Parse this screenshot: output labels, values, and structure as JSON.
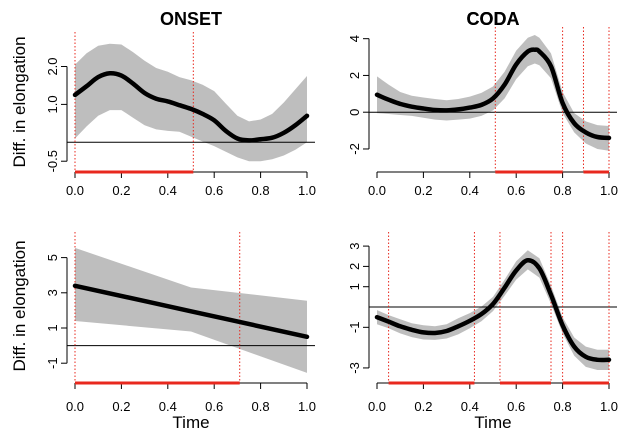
{
  "figure": {
    "ylabel": "Diff. in elongation",
    "xlabel": "Time"
  },
  "chart_data": [
    {
      "type": "line",
      "title": "ONSET",
      "xlabel": "",
      "ylabel": "Diff. in elongation",
      "xlim": [
        0,
        1
      ],
      "ylim": [
        -0.6,
        2.7
      ],
      "xticks": [
        0,
        0.2,
        0.4,
        0.6,
        0.8,
        1.0
      ],
      "xtick_labels": [
        "0.0",
        "0.2",
        "0.4",
        "0.6",
        "0.8",
        "1.0"
      ],
      "yticks": [
        -0.5,
        1.0,
        2.0
      ],
      "ytick_labels": [
        "-0.5",
        "1.0",
        "2.0"
      ],
      "series": [
        {
          "x": [
            0,
            0.05,
            0.1,
            0.15,
            0.2,
            0.25,
            0.3,
            0.35,
            0.4,
            0.45,
            0.5,
            0.55,
            0.6,
            0.65,
            0.7,
            0.75,
            0.8,
            0.85,
            0.9,
            0.95,
            1.0
          ],
          "y": [
            1.25,
            1.48,
            1.72,
            1.82,
            1.76,
            1.55,
            1.3,
            1.15,
            1.08,
            0.98,
            0.88,
            0.75,
            0.58,
            0.3,
            0.1,
            0.05,
            0.08,
            0.12,
            0.25,
            0.45,
            0.7
          ],
          "lower": [
            0.1,
            0.42,
            0.7,
            0.85,
            0.85,
            0.65,
            0.45,
            0.34,
            0.3,
            0.28,
            0.15,
            0.02,
            -0.1,
            -0.25,
            -0.4,
            -0.5,
            -0.5,
            -0.45,
            -0.35,
            -0.2,
            0.0
          ],
          "upper": [
            2.05,
            2.35,
            2.55,
            2.6,
            2.58,
            2.38,
            2.15,
            1.96,
            1.86,
            1.72,
            1.64,
            1.52,
            1.35,
            1.02,
            0.7,
            0.55,
            0.6,
            0.75,
            1.05,
            1.4,
            1.75
          ]
        }
      ],
      "hline": 0,
      "vlines": [
        0.0,
        0.51
      ],
      "significant": [
        [
          0.0,
          0.51
        ]
      ]
    },
    {
      "type": "line",
      "title": "CODA",
      "xlabel": "",
      "ylabel": "",
      "xlim": [
        0,
        1
      ],
      "ylim": [
        -2.6,
        4.2
      ],
      "xticks": [
        0,
        0.2,
        0.4,
        0.6,
        0.8,
        1.0
      ],
      "xtick_labels": [
        "0.0",
        "0.2",
        "0.4",
        "0.6",
        "0.8",
        "1.0"
      ],
      "yticks": [
        -2,
        0,
        2,
        4
      ],
      "ytick_labels": [
        "-2",
        "0",
        "2",
        "4"
      ],
      "series": [
        {
          "x": [
            0,
            0.05,
            0.1,
            0.15,
            0.2,
            0.25,
            0.3,
            0.35,
            0.4,
            0.45,
            0.5,
            0.55,
            0.6,
            0.65,
            0.68,
            0.7,
            0.75,
            0.8,
            0.85,
            0.9,
            0.95,
            1.0
          ],
          "y": [
            0.95,
            0.68,
            0.45,
            0.3,
            0.2,
            0.12,
            0.1,
            0.15,
            0.25,
            0.4,
            0.75,
            1.5,
            2.6,
            3.3,
            3.4,
            3.3,
            2.5,
            0.5,
            -0.6,
            -1.1,
            -1.35,
            -1.4
          ],
          "lower": [
            -0.05,
            -0.1,
            -0.15,
            -0.2,
            -0.3,
            -0.4,
            -0.45,
            -0.4,
            -0.35,
            -0.2,
            0.1,
            0.75,
            1.8,
            2.5,
            2.65,
            2.55,
            1.85,
            -0.05,
            -1.1,
            -1.7,
            -2.0,
            -2.1
          ],
          "upper": [
            1.95,
            1.5,
            1.1,
            0.9,
            0.8,
            0.72,
            0.65,
            0.72,
            0.85,
            1.05,
            1.4,
            2.2,
            3.35,
            4.05,
            4.2,
            4.05,
            3.2,
            1.1,
            -0.05,
            -0.5,
            -0.7,
            -0.75
          ]
        }
      ],
      "hline": 0,
      "vlines": [
        0.51,
        0.8,
        0.89,
        1.0
      ],
      "significant": [
        [
          0.51,
          0.8
        ],
        [
          0.89,
          1.0
        ]
      ]
    },
    {
      "type": "line",
      "title": "",
      "xlabel": "Time",
      "ylabel": "Diff. in elongation",
      "xlim": [
        0,
        1
      ],
      "ylim": [
        -1.5,
        6.0
      ],
      "xticks": [
        0,
        0.2,
        0.4,
        0.6,
        0.8,
        1.0
      ],
      "xtick_labels": [
        "0.0",
        "0.2",
        "0.4",
        "0.6",
        "0.8",
        "1.0"
      ],
      "yticks": [
        -1,
        1,
        3,
        5
      ],
      "ytick_labels": [
        "-1",
        "1",
        "3",
        "5"
      ],
      "series": [
        {
          "x": [
            0,
            0.5,
            1.0
          ],
          "y": [
            3.4,
            1.95,
            0.5
          ],
          "lower": [
            1.4,
            0.8,
            -1.55
          ],
          "upper": [
            5.55,
            3.3,
            2.55
          ]
        }
      ],
      "hline": 0,
      "vlines": [
        0.0,
        0.71
      ],
      "significant": [
        [
          0.0,
          0.71
        ]
      ]
    },
    {
      "type": "line",
      "title": "CODA",
      "xlabel": "Time",
      "ylabel": "",
      "xlim": [
        0,
        1
      ],
      "ylim": [
        -3.2,
        3.3
      ],
      "xticks": [
        0,
        0.2,
        0.4,
        0.6,
        0.8,
        1.0
      ],
      "xtick_labels": [
        "0.0",
        "0.2",
        "0.4",
        "0.6",
        "0.8",
        "1.0"
      ],
      "yticks": [
        -3,
        -1,
        1,
        2,
        3
      ],
      "ytick_labels": [
        "-3",
        "-1",
        "1",
        "2",
        "3"
      ],
      "series": [
        {
          "x": [
            0,
            0.05,
            0.1,
            0.15,
            0.2,
            0.25,
            0.3,
            0.35,
            0.4,
            0.45,
            0.5,
            0.55,
            0.6,
            0.65,
            0.7,
            0.75,
            0.8,
            0.85,
            0.9,
            0.95,
            1.0
          ],
          "y": [
            -0.5,
            -0.72,
            -0.95,
            -1.12,
            -1.25,
            -1.28,
            -1.18,
            -0.95,
            -0.68,
            -0.35,
            0.15,
            0.95,
            1.8,
            2.3,
            1.9,
            0.6,
            -0.9,
            -1.95,
            -2.45,
            -2.6,
            -2.6
          ],
          "lower": [
            -0.85,
            -1.05,
            -1.3,
            -1.48,
            -1.6,
            -1.62,
            -1.55,
            -1.35,
            -1.05,
            -0.7,
            -0.2,
            0.55,
            1.35,
            1.85,
            1.45,
            0.15,
            -1.3,
            -2.4,
            -2.95,
            -3.1,
            -3.1
          ],
          "upper": [
            -0.15,
            -0.4,
            -0.6,
            -0.8,
            -0.9,
            -0.95,
            -0.85,
            -0.55,
            -0.3,
            0.02,
            0.5,
            1.35,
            2.25,
            2.8,
            2.4,
            1.05,
            -0.5,
            -1.5,
            -1.95,
            -2.1,
            -2.1
          ]
        }
      ],
      "hline": 0,
      "vlines": [
        0.05,
        0.42,
        0.53,
        0.75,
        0.8,
        1.0
      ],
      "significant": [
        [
          0.05,
          0.42
        ],
        [
          0.53,
          0.75
        ],
        [
          0.8,
          1.0
        ]
      ]
    }
  ]
}
